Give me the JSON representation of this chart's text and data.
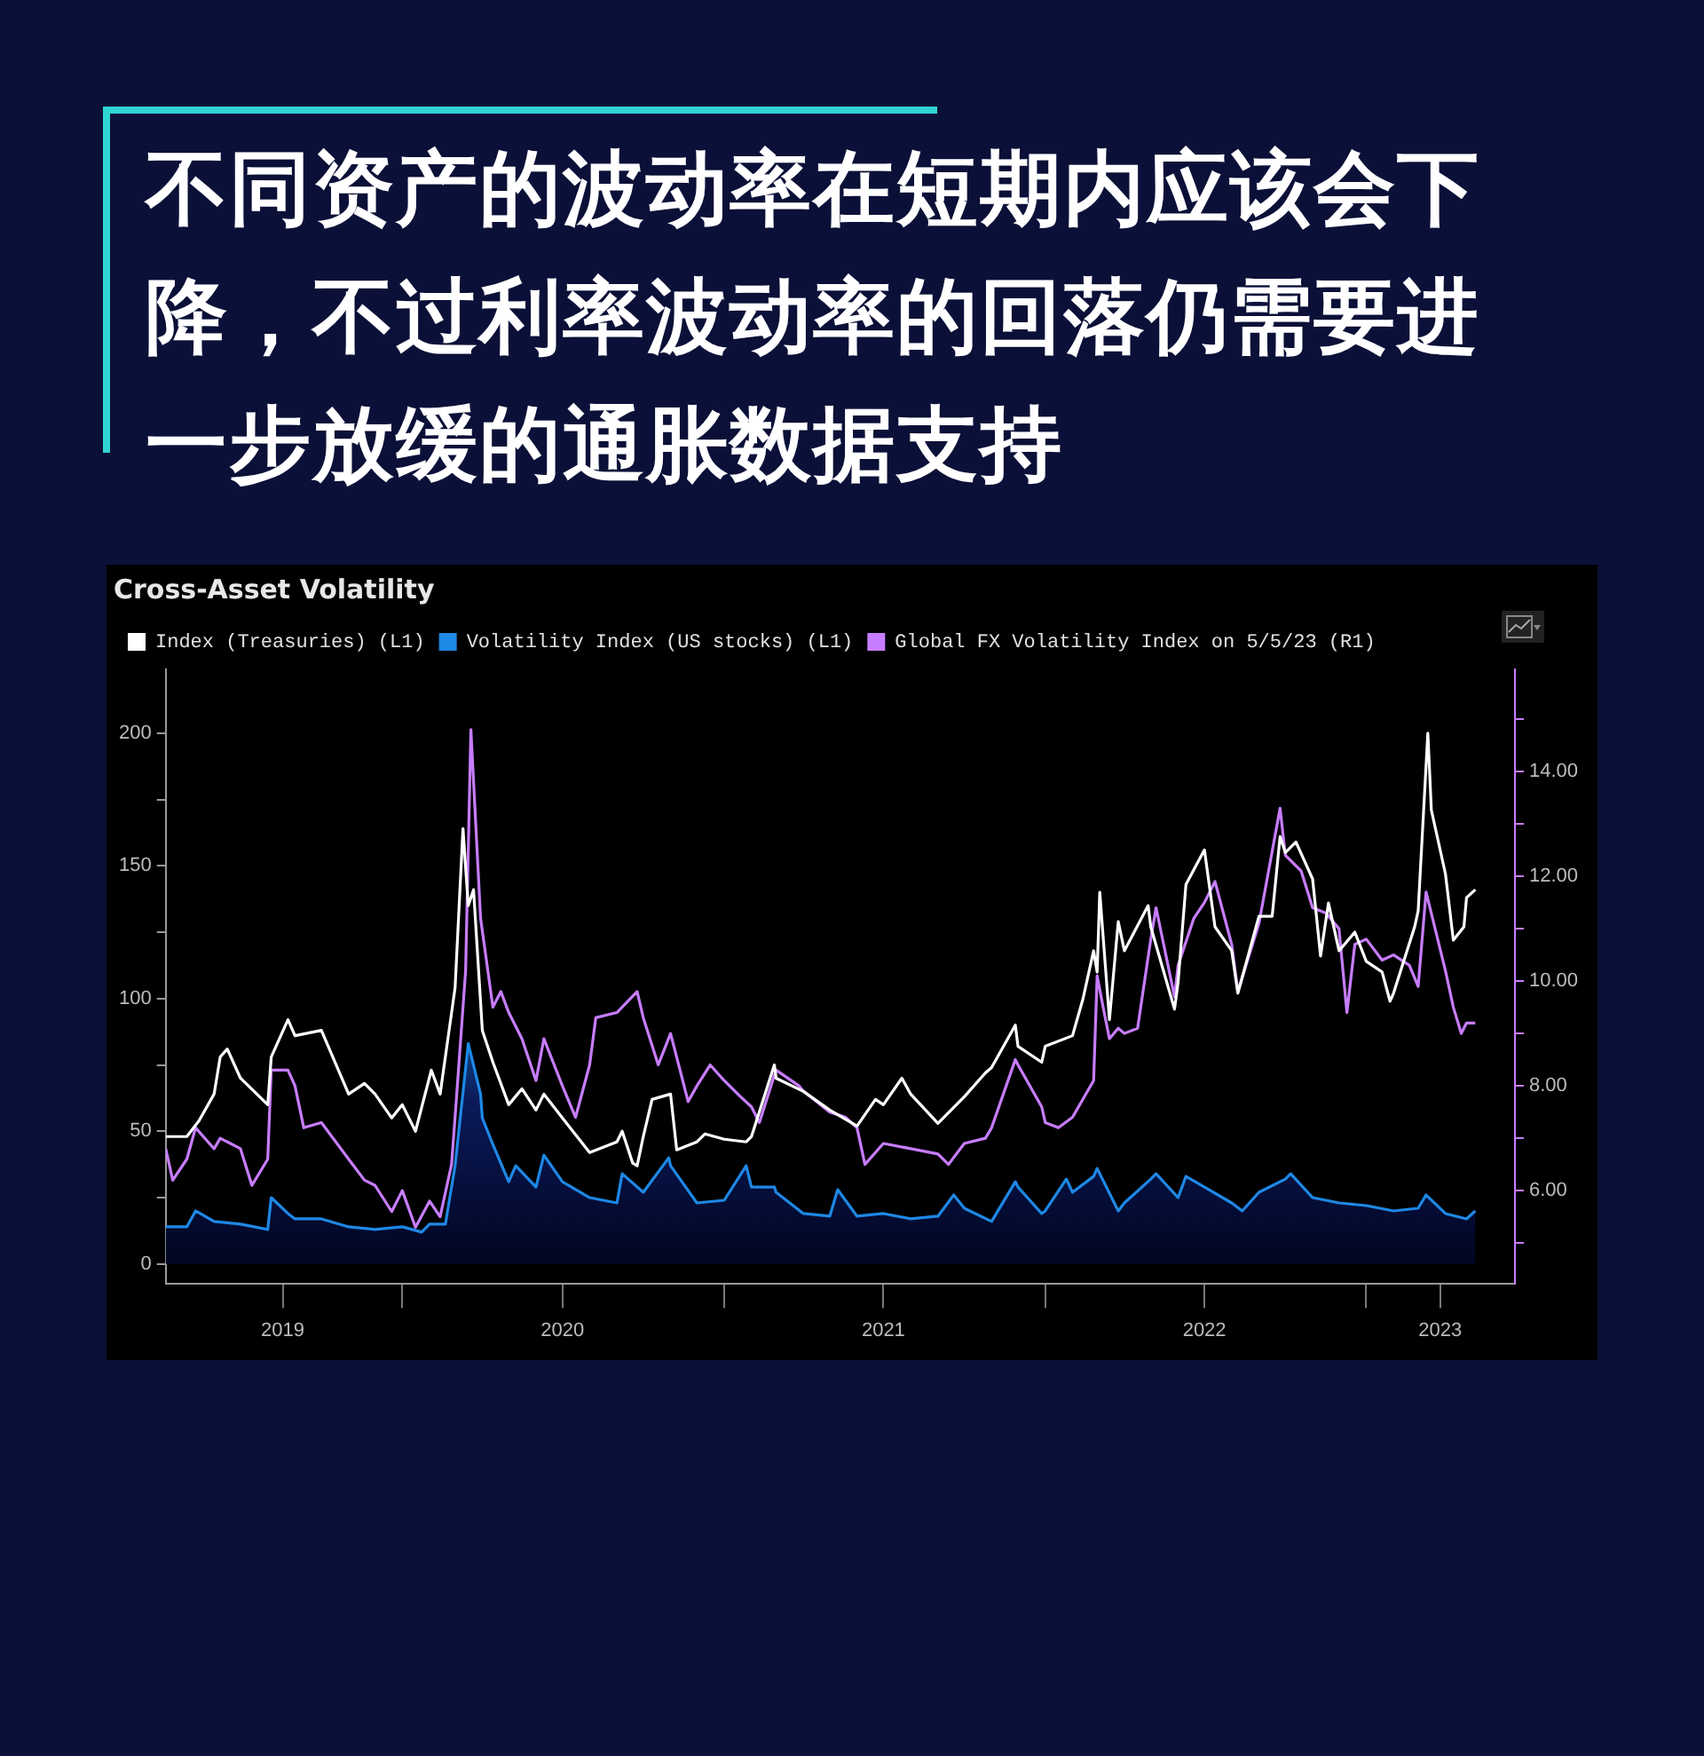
{
  "chart_data": {
    "type": "line",
    "title": "不同资产的波动率在短期内应该会下降，不过利率波动率的回落仍需要进一步放缓的通胀数据支持",
    "subtitle": "Cross-Asset Volatility",
    "legend": "top left",
    "xlim": [
      "2019-04-07",
      "2023-06-19"
    ],
    "xticks": [
      {
        "value": "2019-08-18",
        "label": "2019"
      },
      {
        "value": "2020-01-01",
        "label": null
      },
      {
        "value": "2020-07-01",
        "label": "2020"
      },
      {
        "value": "2021-01-01",
        "label": null
      },
      {
        "value": "2021-07-01",
        "label": "2021"
      },
      {
        "value": "2022-01-01",
        "label": null
      },
      {
        "value": "2022-07-01",
        "label": "2022"
      },
      {
        "value": "2023-01-01",
        "label": null
      },
      {
        "value": "2023-03-26",
        "label": "2023"
      }
    ],
    "ylim": [
      -7.3,
      224
    ],
    "yticks": [
      0,
      {
        "value": 25,
        "label": null
      },
      50,
      {
        "value": 75,
        "label": null
      },
      100,
      {
        "value": 125,
        "label": null
      },
      150,
      {
        "value": 175,
        "label": null
      },
      200
    ],
    "y2lim": [
      4.23,
      15.95
    ],
    "y2ticks": [
      {
        "value": 5,
        "label": null
      },
      {
        "value": 6,
        "label": "6.00"
      },
      {
        "value": 7,
        "label": null
      },
      {
        "value": 8,
        "label": "8.00"
      },
      {
        "value": 9,
        "label": null
      },
      {
        "value": 10,
        "label": "10.00"
      },
      {
        "value": 11,
        "label": null
      },
      {
        "value": 12,
        "label": "12.00"
      },
      {
        "value": 13,
        "label": null
      },
      {
        "value": 14,
        "label": "14.00"
      },
      {
        "value": 15,
        "label": null
      }
    ],
    "series": [
      {
        "name": "Index (Treasuries) (L1)",
        "color": "#ffffff",
        "x": [
          "2019-04-07",
          "2019-05-01",
          "2019-05-15",
          "2019-06-01",
          "2019-06-08",
          "2019-06-16",
          "2019-07-01",
          "2019-08-01",
          "2019-08-05",
          "2019-08-24",
          "2019-09-01",
          "2019-10-01",
          "2019-11-01",
          "2019-11-19",
          "2019-12-01",
          "2019-12-20",
          "2020-01-01",
          "2020-01-16",
          "2020-02-03",
          "2020-02-13",
          "2020-03-01",
          "2020-03-10",
          "2020-03-16",
          "2020-03-22",
          "2020-04-01",
          "2020-04-13",
          "2020-05-01",
          "2020-05-16",
          "2020-06-01",
          "2020-06-10",
          "2020-07-01",
          "2020-08-01",
          "2020-09-01",
          "2020-09-07",
          "2020-09-19",
          "2020-09-24",
          "2020-10-01",
          "2020-10-11",
          "2020-11-01",
          "2020-11-08",
          "2020-12-01",
          "2020-12-10",
          "2021-01-01",
          "2021-01-26",
          "2021-02-01",
          "2021-02-27",
          "2021-03-01",
          "2021-04-01",
          "2021-05-01",
          "2021-06-01",
          "2021-06-22",
          "2021-07-01",
          "2021-07-22",
          "2021-08-01",
          "2021-09-01",
          "2021-10-01",
          "2021-10-25",
          "2021-11-01",
          "2021-11-28",
          "2021-12-01",
          "2021-12-28",
          "2022-01-01",
          "2022-02-01",
          "2022-02-13",
          "2022-02-25",
          "2022-03-01",
          "2022-03-04",
          "2022-03-15",
          "2022-03-25",
          "2022-04-01",
          "2022-04-28",
          "2022-05-01",
          "2022-05-28",
          "2022-06-01",
          "2022-06-10",
          "2022-07-01",
          "2022-07-13",
          "2022-08-01",
          "2022-08-08",
          "2022-09-01",
          "2022-09-16",
          "2022-09-25",
          "2022-10-01",
          "2022-10-13",
          "2022-11-01",
          "2022-11-10",
          "2022-11-19",
          "2022-12-01",
          "2022-12-19",
          "2023-01-01",
          "2023-01-19",
          "2023-01-28",
          "2023-02-01",
          "2023-02-25",
          "2023-03-01",
          "2023-03-12",
          "2023-03-16",
          "2023-04-01",
          "2023-04-10",
          "2023-04-22",
          "2023-04-25",
          "2023-05-05"
        ],
        "values": [
          48,
          48,
          54,
          64,
          78,
          81,
          70,
          60,
          78,
          92,
          86,
          88,
          64,
          68,
          64,
          55,
          60,
          50,
          73,
          64,
          104,
          164,
          135,
          141,
          88,
          76,
          60,
          66,
          58,
          64,
          55,
          42,
          46,
          50,
          38,
          37,
          48,
          62,
          64,
          43,
          46,
          49,
          47,
          46,
          48,
          75,
          70,
          65,
          58,
          52,
          62,
          60,
          70,
          64,
          53,
          63,
          72,
          74,
          90,
          82,
          76,
          82,
          86,
          100,
          118,
          110,
          140,
          92,
          129,
          118,
          135,
          127,
          96,
          106,
          143,
          156,
          127,
          118,
          102,
          131,
          131,
          161,
          155,
          159,
          145,
          116,
          136,
          118,
          125,
          114,
          110,
          99,
          102,
          127,
          133,
          200,
          171,
          147,
          122,
          127,
          138,
          141
        ]
      },
      {
        "name": "Volatility Index (US stocks) (L1)",
        "type": "area",
        "color": "#1e88e5",
        "x": [
          "2019-04-07",
          "2019-05-01",
          "2019-05-11",
          "2019-06-01",
          "2019-07-01",
          "2019-08-01",
          "2019-08-05",
          "2019-08-24",
          "2019-09-01",
          "2019-10-01",
          "2019-11-01",
          "2019-12-01",
          "2020-01-01",
          "2020-01-23",
          "2020-02-01",
          "2020-02-19",
          "2020-03-01",
          "2020-03-16",
          "2020-03-30",
          "2020-04-01",
          "2020-04-13",
          "2020-05-01",
          "2020-05-09",
          "2020-06-01",
          "2020-06-10",
          "2020-07-01",
          "2020-08-01",
          "2020-09-01",
          "2020-09-07",
          "2020-10-01",
          "2020-10-30",
          "2020-11-01",
          "2020-12-01",
          "2021-01-01",
          "2021-01-26",
          "2021-02-01",
          "2021-02-27",
          "2021-03-01",
          "2021-04-01",
          "2021-05-01",
          "2021-05-10",
          "2021-06-01",
          "2021-07-01",
          "2021-08-01",
          "2021-09-01",
          "2021-09-19",
          "2021-10-01",
          "2021-11-01",
          "2021-11-28",
          "2021-12-01",
          "2021-12-28",
          "2022-01-01",
          "2022-01-25",
          "2022-02-01",
          "2022-02-25",
          "2022-03-01",
          "2022-03-25",
          "2022-04-01",
          "2022-05-01",
          "2022-05-07",
          "2022-06-01",
          "2022-06-10",
          "2022-07-01",
          "2022-08-01",
          "2022-08-13",
          "2022-09-01",
          "2022-10-01",
          "2022-10-07",
          "2022-11-01",
          "2022-12-01",
          "2023-01-01",
          "2023-02-01",
          "2023-03-01",
          "2023-03-10",
          "2023-04-01",
          "2023-04-25",
          "2023-05-05"
        ],
        "values": [
          14,
          14,
          20,
          16,
          15,
          13,
          25,
          19,
          17,
          17,
          14,
          13,
          14,
          12,
          15,
          15,
          37,
          83,
          64,
          55,
          45,
          31,
          37,
          29,
          41,
          31,
          25,
          23,
          34,
          27,
          40,
          37,
          23,
          24,
          37,
          29,
          29,
          27,
          19,
          18,
          28,
          18,
          19,
          17,
          18,
          26,
          21,
          16,
          31,
          29,
          19,
          20,
          32,
          27,
          33,
          36,
          20,
          23,
          32,
          34,
          25,
          33,
          29,
          23,
          20,
          27,
          32,
          34,
          25,
          23,
          22,
          20,
          21,
          26,
          19,
          17,
          20
        ]
      },
      {
        "name": "Global FX Volatility Index on 5/5/23 (R1)",
        "axis": "y2",
        "color": "#c77dff",
        "x": [
          "2019-04-07",
          "2019-04-15",
          "2019-05-01",
          "2019-05-11",
          "2019-06-01",
          "2019-06-08",
          "2019-07-01",
          "2019-07-14",
          "2019-08-01",
          "2019-08-05",
          "2019-08-24",
          "2019-09-01",
          "2019-09-11",
          "2019-10-01",
          "2019-11-01",
          "2019-11-19",
          "2019-12-01",
          "2019-12-20",
          "2020-01-01",
          "2020-01-16",
          "2020-02-01",
          "2020-02-13",
          "2020-02-26",
          "2020-03-01",
          "2020-03-13",
          "2020-03-19",
          "2020-03-30",
          "2020-04-13",
          "2020-04-22",
          "2020-05-01",
          "2020-05-16",
          "2020-06-01",
          "2020-06-10",
          "2020-07-01",
          "2020-07-16",
          "2020-08-01",
          "2020-08-08",
          "2020-09-01",
          "2020-09-24",
          "2020-10-01",
          "2020-10-18",
          "2020-11-01",
          "2020-11-21",
          "2020-12-01",
          "2020-12-16",
          "2021-01-01",
          "2021-01-19",
          "2021-02-01",
          "2021-02-10",
          "2021-02-27",
          "2021-03-01",
          "2021-03-27",
          "2021-04-01",
          "2021-05-01",
          "2021-05-19",
          "2021-06-01",
          "2021-06-10",
          "2021-07-01",
          "2021-08-01",
          "2021-09-01",
          "2021-09-13",
          "2021-10-01",
          "2021-10-25",
          "2021-11-01",
          "2021-11-28",
          "2021-12-01",
          "2021-12-28",
          "2022-01-01",
          "2022-01-16",
          "2022-02-01",
          "2022-02-25",
          "2022-03-01",
          "2022-03-09",
          "2022-03-15",
          "2022-03-25",
          "2022-04-01",
          "2022-04-16",
          "2022-05-01",
          "2022-05-07",
          "2022-05-28",
          "2022-06-01",
          "2022-06-19",
          "2022-07-01",
          "2022-07-13",
          "2022-08-01",
          "2022-08-08",
          "2022-09-01",
          "2022-09-25",
          "2022-10-01",
          "2022-10-19",
          "2022-11-01",
          "2022-11-16",
          "2022-12-01",
          "2022-12-10",
          "2022-12-19",
          "2023-01-01",
          "2023-01-19",
          "2023-02-01",
          "2023-02-19",
          "2023-03-01",
          "2023-03-10",
          "2023-04-01",
          "2023-04-10",
          "2023-04-19",
          "2023-04-25",
          "2023-05-05"
        ],
        "values": [
          6.8,
          6.2,
          6.6,
          7.2,
          6.8,
          7.0,
          6.8,
          6.1,
          6.6,
          8.3,
          8.3,
          8.0,
          7.2,
          7.3,
          6.6,
          6.2,
          6.1,
          5.6,
          6.0,
          5.3,
          5.8,
          5.5,
          6.5,
          7.4,
          10.2,
          14.8,
          11.2,
          9.5,
          9.8,
          9.4,
          8.9,
          8.1,
          8.9,
          8.0,
          7.4,
          8.4,
          9.3,
          9.4,
          9.8,
          9.3,
          8.4,
          9.0,
          7.7,
          8.0,
          8.4,
          8.1,
          7.8,
          7.6,
          7.3,
          8.2,
          8.3,
          8.0,
          7.9,
          7.5,
          7.4,
          7.2,
          6.5,
          6.9,
          6.8,
          6.7,
          6.5,
          6.9,
          7.0,
          7.2,
          8.5,
          8.4,
          7.6,
          7.3,
          7.2,
          7.4,
          8.1,
          10.1,
          9.4,
          8.9,
          9.1,
          9.0,
          9.1,
          10.8,
          11.4,
          9.7,
          10.3,
          11.2,
          11.5,
          11.9,
          10.7,
          9.8,
          11.1,
          13.3,
          12.4,
          12.1,
          11.4,
          11.3,
          11.0,
          9.4,
          10.7,
          10.8,
          10.4,
          10.5,
          10.3,
          9.9,
          11.7,
          10.2,
          9.5,
          9.0,
          9.2,
          9.2
        ]
      }
    ]
  }
}
